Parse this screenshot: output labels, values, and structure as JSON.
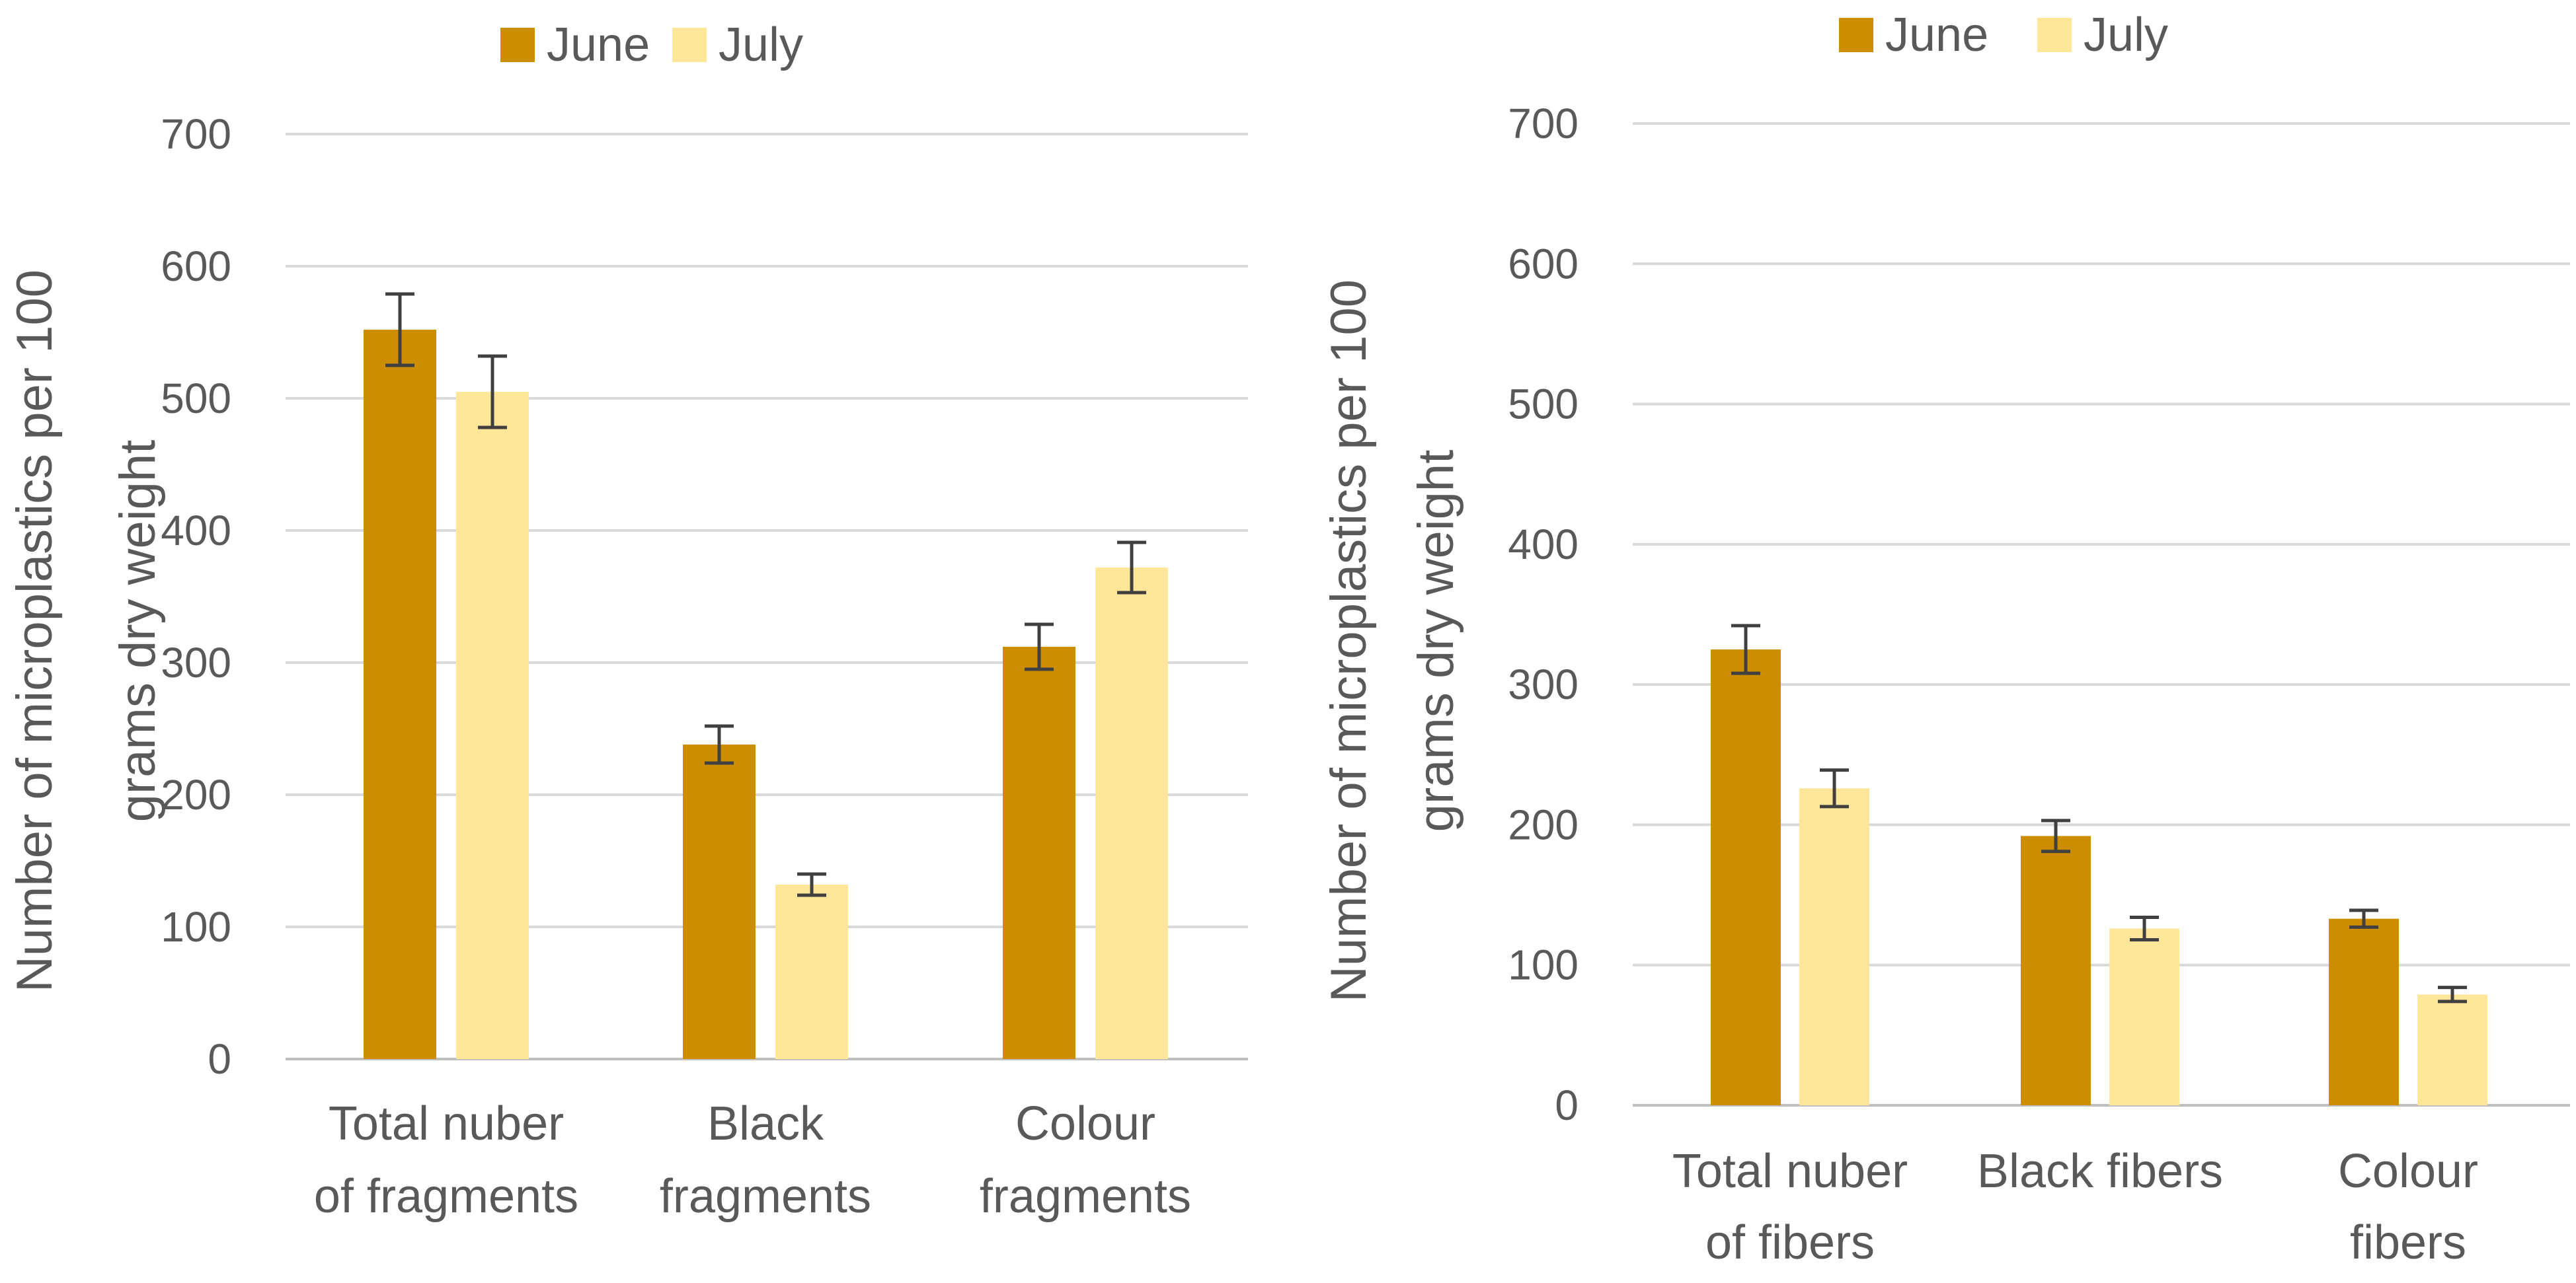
{
  "colors": {
    "june": "#CC8E00",
    "july": "#FFE699",
    "grid": "#D9D9D9",
    "axis": "#BFBFBF",
    "text": "#595959",
    "error": "#404040"
  },
  "chart_data": [
    {
      "type": "bar",
      "ylabel": "Number of microplastics per 100 grams dry weight",
      "ylabel_lines": [
        "Number of microplastics per 100",
        "grams dry weight"
      ],
      "ylim": [
        0,
        700
      ],
      "ticks": [
        0,
        100,
        200,
        300,
        400,
        500,
        600,
        700
      ],
      "grid": true,
      "legend": "top",
      "categories": [
        "Total nuber of fragments",
        "Black fragments",
        "Colour fragments"
      ],
      "category_lines": [
        [
          "Total nuber",
          "of fragments"
        ],
        [
          "Black",
          "fragments"
        ],
        [
          "Colour",
          "fragments"
        ]
      ],
      "series": [
        {
          "name": "June",
          "values": [
            552,
            238,
            312
          ],
          "errors": [
            27,
            14,
            17
          ]
        },
        {
          "name": "July",
          "values": [
            505,
            132,
            372
          ],
          "errors": [
            27,
            8,
            19
          ]
        }
      ]
    },
    {
      "type": "bar",
      "ylabel": "Number of microplastics per 100 grams dry weight",
      "ylabel_lines": [
        "Number of microplastics per 100",
        "grams dry weight"
      ],
      "ylim": [
        0,
        700
      ],
      "ticks": [
        0,
        100,
        200,
        300,
        400,
        500,
        600,
        700
      ],
      "grid": true,
      "legend": "top",
      "categories": [
        "Total nuber of fibers",
        "Black fibers",
        "Colour fibers"
      ],
      "category_lines": [
        [
          "Total nuber",
          "of fibers"
        ],
        [
          "Black fibers"
        ],
        [
          "Colour",
          "fibers"
        ]
      ],
      "series": [
        {
          "name": "June",
          "values": [
            325,
            192,
            133
          ],
          "errors": [
            17,
            11,
            6
          ]
        },
        {
          "name": "July",
          "values": [
            226,
            126,
            79
          ],
          "errors": [
            13,
            8,
            5
          ]
        }
      ]
    }
  ]
}
